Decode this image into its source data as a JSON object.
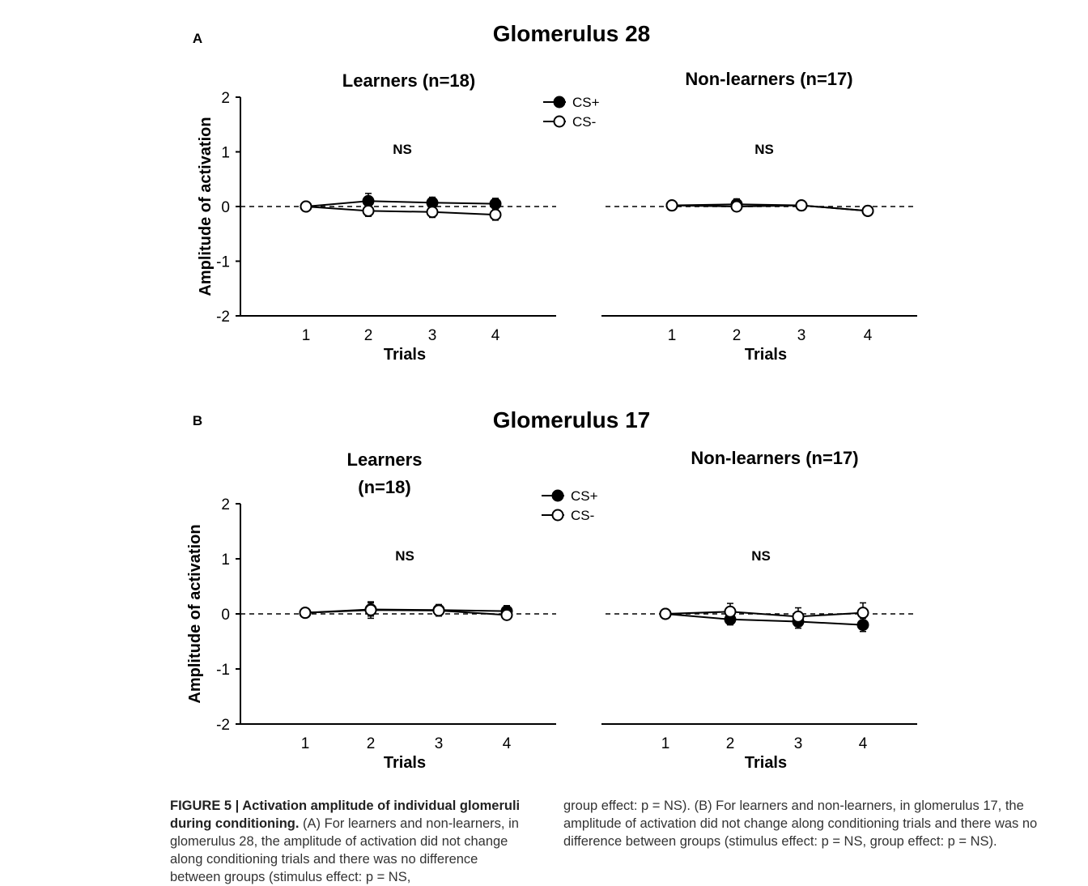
{
  "chart_data": [
    {
      "panel": "A",
      "title": "Glomerulus 28",
      "ylabel": "Amplitude of activation",
      "xlabel": "Trials",
      "ylim": [
        -2,
        2
      ],
      "yticks": [
        "2",
        "1",
        "0",
        "-1",
        "-2"
      ],
      "legend": {
        "series": [
          "CS+",
          "CS-"
        ],
        "placement": "top-center"
      },
      "subplots": [
        {
          "type": "line",
          "title": "Learners (n=18)",
          "annotation": "NS",
          "x": [
            1,
            2,
            3,
            4
          ],
          "series": [
            {
              "name": "CS+",
              "marker": "filled",
              "values": [
                0.0,
                0.1,
                0.07,
                0.05
              ],
              "errors": [
                0.0,
                0.14,
                0.1,
                0.1
              ]
            },
            {
              "name": "CS-",
              "marker": "open",
              "values": [
                0.0,
                -0.08,
                -0.1,
                -0.15
              ],
              "errors": [
                0.0,
                0.1,
                0.1,
                0.1
              ]
            }
          ]
        },
        {
          "type": "line",
          "title": "Non-learners (n=17)",
          "annotation": "NS",
          "x": [
            1,
            2,
            3,
            4
          ],
          "series": [
            {
              "name": "CS+",
              "marker": "filled",
              "values": [
                0.02,
                0.04,
                0.02,
                -0.08
              ],
              "errors": [
                0.0,
                0.1,
                0.05,
                0.08
              ]
            },
            {
              "name": "CS-",
              "marker": "open",
              "values": [
                0.02,
                0.0,
                0.02,
                -0.08
              ],
              "errors": [
                0.0,
                0.08,
                0.05,
                0.08
              ]
            }
          ]
        }
      ]
    },
    {
      "panel": "B",
      "title": "Glomerulus 17",
      "ylabel": "Amplitude of activation",
      "xlabel": "Trials",
      "ylim": [
        -2,
        2
      ],
      "yticks": [
        "2",
        "1",
        "0",
        "-1",
        "-2"
      ],
      "legend": {
        "series": [
          "CS+",
          "CS-"
        ],
        "placement": "top-center"
      },
      "subplots": [
        {
          "type": "line",
          "title": [
            "Learners",
            "(n=18)"
          ],
          "annotation": "NS",
          "x": [
            1,
            2,
            3,
            4
          ],
          "series": [
            {
              "name": "CS+",
              "marker": "filled",
              "values": [
                0.02,
                0.08,
                0.07,
                0.05
              ],
              "errors": [
                0.0,
                0.12,
                0.1,
                0.1
              ]
            },
            {
              "name": "CS-",
              "marker": "open",
              "values": [
                0.02,
                0.07,
                0.06,
                -0.02
              ],
              "errors": [
                0.0,
                0.15,
                0.1,
                0.08
              ]
            }
          ]
        },
        {
          "type": "line",
          "title": "Non-learners (n=17)",
          "annotation": "NS",
          "x": [
            1,
            2,
            3,
            4
          ],
          "series": [
            {
              "name": "CS+",
              "marker": "filled",
              "values": [
                0.0,
                -0.1,
                -0.14,
                -0.2
              ],
              "errors": [
                0.0,
                0.1,
                0.12,
                0.12
              ]
            },
            {
              "name": "CS-",
              "marker": "open",
              "values": [
                0.0,
                0.04,
                -0.05,
                0.02
              ],
              "errors": [
                0.0,
                0.15,
                0.16,
                0.18
              ]
            }
          ]
        }
      ]
    }
  ],
  "caption": {
    "label": "FIGURE 5 | Activation amplitude of individual glomeruli during conditioning.",
    "left_text": " (A) For learners and non-learners, in glomerulus 28, the amplitude of activation did not change along conditioning trials and there was no difference between groups (stimulus effect: p = NS,",
    "right_text": "group effect: p = NS). (B) For learners and non-learners, in glomerulus 17, the amplitude of activation did not change along conditioning trials and there was no difference between groups (stimulus effect: p = NS, group effect: p = NS)."
  }
}
